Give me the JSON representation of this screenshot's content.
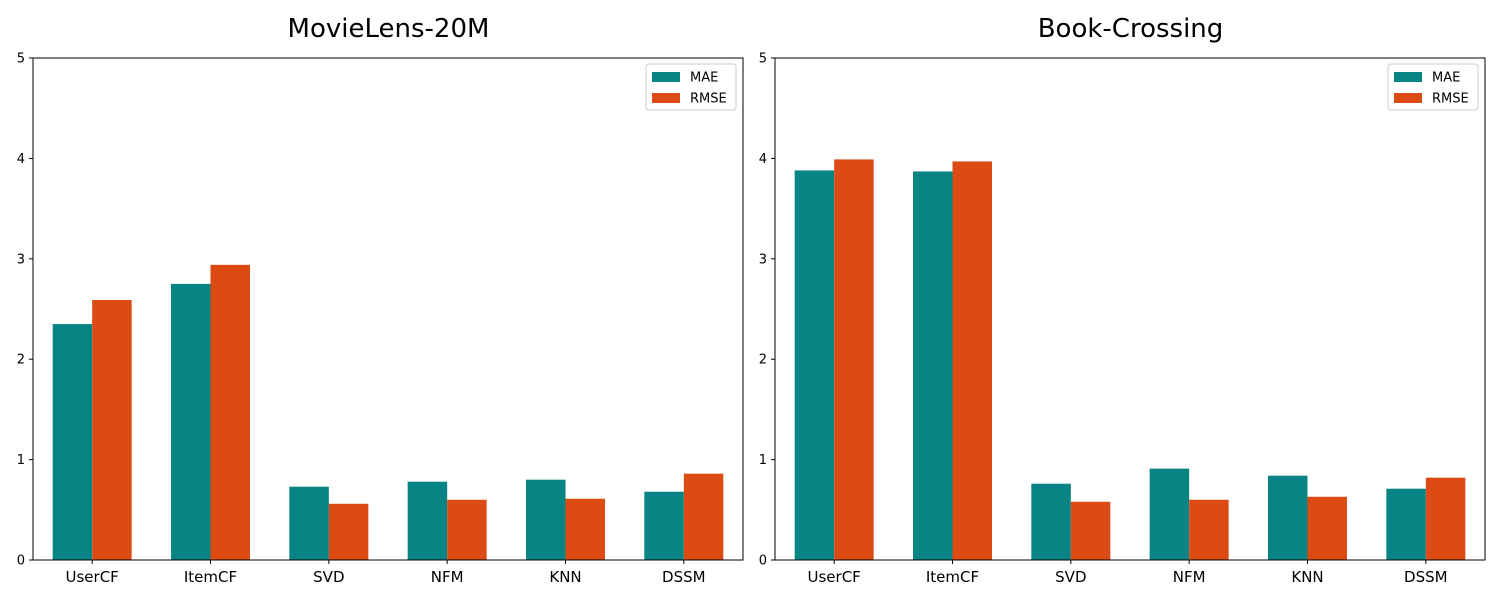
{
  "colors": {
    "MAE": "#088484",
    "RMSE": "#dc4b14"
  },
  "chart_data": [
    {
      "type": "bar",
      "title": "MovieLens-20M",
      "categories": [
        "UserCF",
        "ItemCF",
        "SVD",
        "NFM",
        "KNN",
        "DSSM"
      ],
      "series": [
        {
          "name": "MAE",
          "values": [
            2.35,
            2.75,
            0.73,
            0.78,
            0.8,
            0.68
          ]
        },
        {
          "name": "RMSE",
          "values": [
            2.59,
            2.94,
            0.56,
            0.6,
            0.61,
            0.86
          ]
        }
      ],
      "xlabel": "",
      "ylabel": "",
      "ylim": [
        0,
        5
      ],
      "yticks": [
        "0",
        "1",
        "2",
        "3",
        "4",
        "5"
      ],
      "legend_position": "top-right",
      "grid": false
    },
    {
      "type": "bar",
      "title": "Book-Crossing",
      "categories": [
        "UserCF",
        "ItemCF",
        "SVD",
        "NFM",
        "KNN",
        "DSSM"
      ],
      "series": [
        {
          "name": "MAE",
          "values": [
            3.88,
            3.87,
            0.76,
            0.91,
            0.84,
            0.71
          ]
        },
        {
          "name": "RMSE",
          "values": [
            3.99,
            3.97,
            0.58,
            0.6,
            0.63,
            0.82
          ]
        }
      ],
      "xlabel": "",
      "ylabel": "",
      "ylim": [
        0,
        5
      ],
      "yticks": [
        "0",
        "1",
        "2",
        "3",
        "4",
        "5"
      ],
      "legend_position": "top-right",
      "grid": false
    }
  ]
}
